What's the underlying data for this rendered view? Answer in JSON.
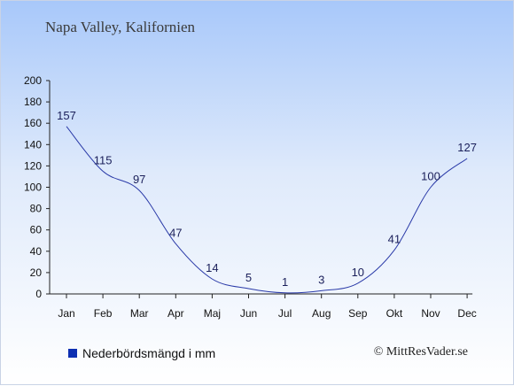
{
  "chart_data": {
    "type": "line",
    "title": "Napa Valley, Kalifornien",
    "categories": [
      "Jan",
      "Feb",
      "Mar",
      "Apr",
      "Maj",
      "Jun",
      "Jul",
      "Aug",
      "Sep",
      "Okt",
      "Nov",
      "Dec"
    ],
    "series": [
      {
        "name": "Nederbördsmängd i mm",
        "values": [
          157,
          115,
          97,
          47,
          14,
          5,
          1,
          3,
          10,
          41,
          100,
          127
        ]
      }
    ],
    "ylim": [
      0,
      200
    ],
    "yticks": [
      0,
      20,
      40,
      60,
      80,
      100,
      120,
      140,
      160,
      180,
      200
    ],
    "grid": false,
    "legend": "bottom-left",
    "colors": {
      "line": "#2a3aa8",
      "legend_swatch": "#0d2fb2"
    }
  },
  "credit": "© MittResVader.se"
}
